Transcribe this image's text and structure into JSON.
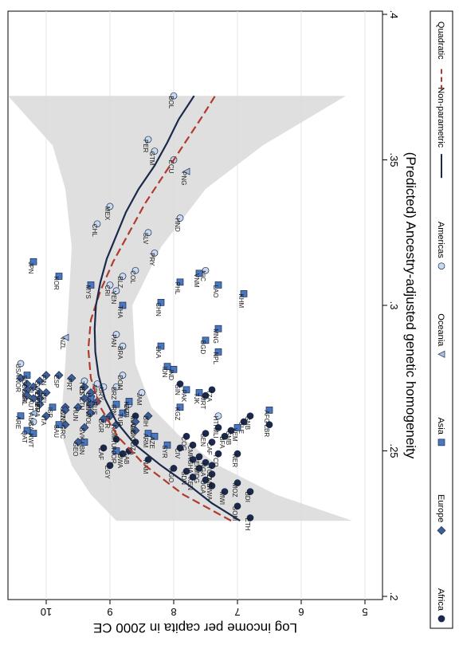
{
  "chart_data": {
    "type": "scatter",
    "rotated": "90-degrees-clockwise",
    "xlabel": "(Predicted) Ancestry-adjusted genetic homogeneity",
    "ylabel": "Log income per capita in 2000 CE",
    "xlim": [
      0.2,
      0.4
    ],
    "ylim": [
      5,
      11
    ],
    "x_ticks": [
      0.2,
      0.25,
      0.3,
      0.35,
      0.4
    ],
    "x_tick_labels": [
      ".2",
      ".25",
      ".3",
      ".35",
      ".4"
    ],
    "y_ticks": [
      5,
      6,
      7,
      8,
      9,
      10
    ],
    "y_tick_labels": [
      "5",
      "6",
      "7",
      "8",
      "9",
      "10"
    ],
    "grid": true,
    "legend_position": "right",
    "legend": [
      {
        "key": "Africa",
        "label": "Africa",
        "marker": "circle",
        "color": "#1b2a4a"
      },
      {
        "key": "Europe",
        "label": "Europe",
        "marker": "diamond",
        "color": "#3f5f98"
      },
      {
        "key": "Asia",
        "label": "Asia",
        "marker": "square",
        "color": "#4a78c0"
      },
      {
        "key": "Oceania",
        "label": "Oceania",
        "marker": "triangle",
        "color": "#a9c2e6"
      },
      {
        "key": "Americas",
        "label": "Americas",
        "marker": "circle",
        "color": "#c9daf0"
      },
      {
        "key": "Nonparametric",
        "label": "Non-parametric",
        "marker": "line",
        "color": "#1b2a4a"
      },
      {
        "key": "Quadratic",
        "label": "Quadratic",
        "marker": "dash",
        "color": "#b03a2e"
      }
    ],
    "labeled_points": [
      {
        "code": "BOL",
        "x": 0.372,
        "y": 8.0,
        "group": "Americas"
      },
      {
        "code": "PER",
        "x": 0.357,
        "y": 8.4,
        "group": "Americas"
      },
      {
        "code": "GTM",
        "x": 0.353,
        "y": 8.3,
        "group": "Americas"
      },
      {
        "code": "ECU",
        "x": 0.35,
        "y": 8.0,
        "group": "Americas"
      },
      {
        "code": "PNG",
        "x": 0.346,
        "y": 7.8,
        "group": "Oceania"
      },
      {
        "code": "MEX",
        "x": 0.334,
        "y": 9.0,
        "group": "Americas"
      },
      {
        "code": "CHL",
        "x": 0.328,
        "y": 9.2,
        "group": "Americas"
      },
      {
        "code": "SLV",
        "x": 0.325,
        "y": 8.4,
        "group": "Americas"
      },
      {
        "code": "HND",
        "x": 0.33,
        "y": 7.9,
        "group": "Americas"
      },
      {
        "code": "JPN",
        "x": 0.315,
        "y": 10.2,
        "group": "Asia"
      },
      {
        "code": "KOR",
        "x": 0.31,
        "y": 9.8,
        "group": "Asia"
      },
      {
        "code": "COL",
        "x": 0.312,
        "y": 8.6,
        "group": "Americas"
      },
      {
        "code": "BLZ",
        "x": 0.31,
        "y": 8.8,
        "group": "Americas"
      },
      {
        "code": "NIC",
        "x": 0.312,
        "y": 7.5,
        "group": "Americas"
      },
      {
        "code": "MYS",
        "x": 0.307,
        "y": 9.3,
        "group": "Asia"
      },
      {
        "code": "VEN",
        "x": 0.305,
        "y": 8.9,
        "group": "Americas"
      },
      {
        "code": "THA",
        "x": 0.3,
        "y": 8.8,
        "group": "Asia"
      },
      {
        "code": "CHN",
        "x": 0.301,
        "y": 8.2,
        "group": "Asia"
      },
      {
        "code": "VNM",
        "x": 0.311,
        "y": 7.6,
        "group": "Asia"
      },
      {
        "code": "PHL",
        "x": 0.308,
        "y": 7.9,
        "group": "Asia"
      },
      {
        "code": "LAO",
        "x": 0.307,
        "y": 7.3,
        "group": "Asia"
      },
      {
        "code": "KHM",
        "x": 0.304,
        "y": 6.9,
        "group": "Asia"
      },
      {
        "code": "NZL",
        "x": 0.289,
        "y": 9.7,
        "group": "Oceania"
      },
      {
        "code": "BRA",
        "x": 0.286,
        "y": 8.8,
        "group": "Americas"
      },
      {
        "code": "LKA",
        "x": 0.286,
        "y": 8.2,
        "group": "Asia"
      },
      {
        "code": "BGD",
        "x": 0.288,
        "y": 7.5,
        "group": "Asia"
      },
      {
        "code": "MNG",
        "x": 0.292,
        "y": 7.3,
        "group": "Asia"
      },
      {
        "code": "NPL",
        "x": 0.284,
        "y": 7.3,
        "group": "Asia"
      },
      {
        "code": "USA",
        "x": 0.28,
        "y": 10.4,
        "group": "Americas"
      },
      {
        "code": "ESP",
        "x": 0.276,
        "y": 9.8,
        "group": "Europe"
      },
      {
        "code": "PRT",
        "x": 0.275,
        "y": 9.6,
        "group": "Europe"
      },
      {
        "code": "ARG",
        "x": 0.273,
        "y": 9.2,
        "group": "Americas"
      },
      {
        "code": "URY",
        "x": 0.272,
        "y": 9.1,
        "group": "Americas"
      },
      {
        "code": "OMN",
        "x": 0.268,
        "y": 9.3,
        "group": "Asia"
      },
      {
        "code": "SVN",
        "x": 0.265,
        "y": 9.7,
        "group": "Europe"
      },
      {
        "code": "ISR",
        "x": 0.265,
        "y": 9.9,
        "group": "Asia"
      },
      {
        "code": "HRV",
        "x": 0.266,
        "y": 9.3,
        "group": "Europe"
      },
      {
        "code": "BRZ",
        "x": 0.272,
        "y": 8.9,
        "group": "Americas"
      },
      {
        "code": "CUB",
        "x": 0.266,
        "y": 8.7,
        "group": "Americas"
      },
      {
        "code": "IND",
        "x": 0.278,
        "y": 8.0,
        "group": "Asia"
      },
      {
        "code": "GIN",
        "x": 0.273,
        "y": 7.9,
        "group": "Africa"
      },
      {
        "code": "PAK",
        "x": 0.271,
        "y": 7.8,
        "group": "Asia"
      },
      {
        "code": "MRT",
        "x": 0.269,
        "y": 7.5,
        "group": "Africa"
      },
      {
        "code": "TZA",
        "x": 0.271,
        "y": 7.4,
        "group": "Africa"
      },
      {
        "code": "MLI",
        "x": 0.258,
        "y": 7.3,
        "group": "Africa"
      },
      {
        "code": "GNB",
        "x": 0.262,
        "y": 6.8,
        "group": "Africa"
      },
      {
        "code": "SLE",
        "x": 0.26,
        "y": 6.9,
        "group": "Africa"
      },
      {
        "code": "LBR",
        "x": 0.259,
        "y": 6.5,
        "group": "Africa"
      },
      {
        "code": "AFG",
        "x": 0.264,
        "y": 6.5,
        "group": "Asia"
      },
      {
        "code": "CAF",
        "x": 0.253,
        "y": 7.4,
        "group": "Africa"
      },
      {
        "code": "NER",
        "x": 0.249,
        "y": 7.0,
        "group": "Africa"
      },
      {
        "code": "TGO",
        "x": 0.245,
        "y": 7.4,
        "group": "Africa"
      },
      {
        "code": "MDG",
        "x": 0.244,
        "y": 7.6,
        "group": "Africa"
      },
      {
        "code": "COG",
        "x": 0.255,
        "y": 7.8,
        "group": "Africa"
      },
      {
        "code": "BIH",
        "x": 0.262,
        "y": 8.4,
        "group": "Europe"
      },
      {
        "code": "MAR",
        "x": 0.262,
        "y": 8.6,
        "group": "Africa"
      },
      {
        "code": "SYR",
        "x": 0.252,
        "y": 8.1,
        "group": "Asia"
      },
      {
        "code": "EGY",
        "x": 0.245,
        "y": 9.0,
        "group": "Africa"
      },
      {
        "code": "JOR",
        "x": 0.25,
        "y": 8.9,
        "group": "Asia"
      },
      {
        "code": "LBN",
        "x": 0.253,
        "y": 9.4,
        "group": "Asia"
      },
      {
        "code": "GEO",
        "x": 0.253,
        "y": 9.5,
        "group": "Europe"
      },
      {
        "code": "SVK",
        "x": 0.258,
        "y": 9.4,
        "group": "Europe"
      },
      {
        "code": "GRC",
        "x": 0.259,
        "y": 9.7,
        "group": "Europe"
      },
      {
        "code": "CAN",
        "x": 0.26,
        "y": 10.2,
        "group": "Americas"
      },
      {
        "code": "QAT",
        "x": 0.257,
        "y": 10.3,
        "group": "Asia"
      },
      {
        "code": "KWT",
        "x": 0.256,
        "y": 10.2,
        "group": "Asia"
      },
      {
        "code": "ETH",
        "x": 0.227,
        "y": 6.8,
        "group": "Africa"
      },
      {
        "code": "SOM",
        "x": 0.231,
        "y": 7.0,
        "group": "Africa"
      },
      {
        "code": "BDI",
        "x": 0.236,
        "y": 6.8,
        "group": "Africa"
      },
      {
        "code": "RWA",
        "x": 0.238,
        "y": 7.4,
        "group": "Africa"
      },
      {
        "code": "UGA",
        "x": 0.24,
        "y": 7.5,
        "group": "Africa"
      },
      {
        "code": "KEN",
        "x": 0.241,
        "y": 7.7,
        "group": "Africa"
      },
      {
        "code": "MWI",
        "x": 0.236,
        "y": 7.2,
        "group": "Africa"
      },
      {
        "code": "ZMB",
        "x": 0.242,
        "y": 7.4,
        "group": "Africa"
      },
      {
        "code": "GAB",
        "x": 0.25,
        "y": 8.7,
        "group": "Africa"
      },
      {
        "code": "CMR",
        "x": 0.252,
        "y": 7.7,
        "group": "Africa"
      },
      {
        "code": "BEN",
        "x": 0.248,
        "y": 7.6,
        "group": "Africa"
      },
      {
        "code": "CIV",
        "x": 0.251,
        "y": 7.9,
        "group": "Africa"
      },
      {
        "code": "GHA",
        "x": 0.247,
        "y": 7.7,
        "group": "Africa"
      },
      {
        "code": "TCD",
        "x": 0.249,
        "y": 7.3,
        "group": "Africa"
      },
      {
        "code": "SDN",
        "x": 0.243,
        "y": 7.8,
        "group": "Africa"
      },
      {
        "code": "NGA",
        "x": 0.246,
        "y": 7.5,
        "group": "Africa"
      },
      {
        "code": "BFA",
        "x": 0.255,
        "y": 7.2,
        "group": "Africa"
      },
      {
        "code": "SEN",
        "x": 0.256,
        "y": 7.5,
        "group": "Africa"
      },
      {
        "code": "GMB",
        "x": 0.257,
        "y": 7.1,
        "group": "Africa"
      },
      {
        "code": "MOZ",
        "x": 0.239,
        "y": 7.0,
        "group": "Africa"
      },
      {
        "code": "AGO",
        "x": 0.244,
        "y": 8.0,
        "group": "Africa"
      },
      {
        "code": "NAM",
        "x": 0.247,
        "y": 8.4,
        "group": "Africa"
      },
      {
        "code": "BWA",
        "x": 0.249,
        "y": 8.8,
        "group": "Africa"
      },
      {
        "code": "ZAF",
        "x": 0.251,
        "y": 9.1,
        "group": "Africa"
      },
      {
        "code": "TUN",
        "x": 0.254,
        "y": 8.9,
        "group": "Africa"
      },
      {
        "code": "DZA",
        "x": 0.253,
        "y": 8.6,
        "group": "Africa"
      },
      {
        "code": "UKR",
        "x": 0.257,
        "y": 8.6,
        "group": "Europe"
      },
      {
        "code": "ROM",
        "x": 0.259,
        "y": 8.9,
        "group": "Europe"
      },
      {
        "code": "BLR",
        "x": 0.262,
        "y": 9.0,
        "group": "Europe"
      },
      {
        "code": "TUR",
        "x": 0.263,
        "y": 8.8,
        "group": "Asia"
      },
      {
        "code": "IRN",
        "x": 0.266,
        "y": 8.9,
        "group": "Asia"
      },
      {
        "code": "KAZ",
        "x": 0.267,
        "y": 8.7,
        "group": "Asia"
      },
      {
        "code": "KGZ",
        "x": 0.265,
        "y": 7.9,
        "group": "Asia"
      },
      {
        "code": "TJK",
        "x": 0.27,
        "y": 7.6,
        "group": "Asia"
      },
      {
        "code": "ITA",
        "x": 0.262,
        "y": 10.0,
        "group": "Europe"
      },
      {
        "code": "FRA",
        "x": 0.266,
        "y": 10.1,
        "group": "Europe"
      },
      {
        "code": "GBR",
        "x": 0.268,
        "y": 10.1,
        "group": "Europe"
      },
      {
        "code": "DEU",
        "x": 0.27,
        "y": 10.1,
        "group": "Europe"
      },
      {
        "code": "NLD",
        "x": 0.272,
        "y": 10.2,
        "group": "Europe"
      },
      {
        "code": "BEL",
        "x": 0.27,
        "y": 10.0,
        "group": "Europe"
      },
      {
        "code": "AUT",
        "x": 0.268,
        "y": 10.2,
        "group": "Europe"
      },
      {
        "code": "CHE",
        "x": 0.273,
        "y": 10.3,
        "group": "Europe"
      },
      {
        "code": "DNK",
        "x": 0.271,
        "y": 10.3,
        "group": "Europe"
      },
      {
        "code": "SWE",
        "x": 0.274,
        "y": 10.1,
        "group": "Europe"
      },
      {
        "code": "NOR",
        "x": 0.275,
        "y": 10.4,
        "group": "Europe"
      },
      {
        "code": "FIN",
        "x": 0.276,
        "y": 10.0,
        "group": "Europe"
      },
      {
        "code": "IRL",
        "x": 0.269,
        "y": 10.3,
        "group": "Europe"
      },
      {
        "code": "AUS",
        "x": 0.263,
        "y": 10.2,
        "group": "Oceania"
      },
      {
        "code": "POL",
        "x": 0.263,
        "y": 9.3,
        "group": "Europe"
      },
      {
        "code": "HUN",
        "x": 0.265,
        "y": 9.5,
        "group": "Europe"
      },
      {
        "code": "CZE",
        "x": 0.264,
        "y": 9.7,
        "group": "Europe"
      },
      {
        "code": "EST",
        "x": 0.272,
        "y": 9.4,
        "group": "Europe"
      },
      {
        "code": "LVA",
        "x": 0.27,
        "y": 9.3,
        "group": "Europe"
      },
      {
        "code": "LTU",
        "x": 0.268,
        "y": 9.4,
        "group": "Europe"
      },
      {
        "code": "RUS",
        "x": 0.267,
        "y": 9.2,
        "group": "Europe"
      },
      {
        "code": "BGR",
        "x": 0.261,
        "y": 9.1,
        "group": "Europe"
      },
      {
        "code": "ALB",
        "x": 0.26,
        "y": 8.6,
        "group": "Europe"
      },
      {
        "code": "ARM",
        "x": 0.256,
        "y": 8.4,
        "group": "Asia"
      },
      {
        "code": "AZE",
        "x": 0.255,
        "y": 8.3,
        "group": "Asia"
      },
      {
        "code": "SAU",
        "x": 0.259,
        "y": 9.8,
        "group": "Asia"
      },
      {
        "code": "ARE",
        "x": 0.262,
        "y": 10.4,
        "group": "Asia"
      },
      {
        "code": "YEM",
        "x": 0.258,
        "y": 7.0,
        "group": "Asia"
      },
      {
        "code": "SGP",
        "x": 0.276,
        "y": 10.3,
        "group": "Asia"
      },
      {
        "code": "IDN",
        "x": 0.279,
        "y": 8.1,
        "group": "Asia"
      },
      {
        "code": "TTO",
        "x": 0.274,
        "y": 9.4,
        "group": "Americas"
      },
      {
        "code": "JAM",
        "x": 0.27,
        "y": 8.5,
        "group": "Americas"
      },
      {
        "code": "DOM",
        "x": 0.276,
        "y": 8.8,
        "group": "Americas"
      },
      {
        "code": "PAN",
        "x": 0.29,
        "y": 8.9,
        "group": "Americas"
      },
      {
        "code": "CRI",
        "x": 0.307,
        "y": 9.0,
        "group": "Americas"
      },
      {
        "code": "PRY",
        "x": 0.318,
        "y": 8.3,
        "group": "Americas"
      },
      {
        "code": "HTI",
        "x": 0.262,
        "y": 7.3,
        "group": "Americas"
      }
    ],
    "nonparametric_curve": {
      "x": [
        0.226,
        0.232,
        0.238,
        0.245,
        0.252,
        0.26,
        0.268,
        0.276,
        0.284,
        0.292,
        0.3,
        0.308,
        0.316,
        0.324,
        0.332,
        0.34,
        0.348,
        0.356,
        0.364,
        0.372
      ],
      "y": [
        6.96,
        7.4,
        7.75,
        8.2,
        8.6,
        8.9,
        9.08,
        9.18,
        9.23,
        9.24,
        9.22,
        9.15,
        9.05,
        8.9,
        8.75,
        8.55,
        8.3,
        8.1,
        7.92,
        7.68
      ]
    },
    "quadratic_curve": {
      "x": [
        0.226,
        0.235,
        0.245,
        0.255,
        0.265,
        0.275,
        0.285,
        0.295,
        0.305,
        0.315,
        0.325,
        0.335,
        0.345,
        0.355,
        0.365,
        0.372
      ],
      "y": [
        7.1,
        7.85,
        8.45,
        8.88,
        9.15,
        9.3,
        9.34,
        9.3,
        9.15,
        8.95,
        8.7,
        8.45,
        8.15,
        7.85,
        7.55,
        7.35
      ]
    },
    "ci_band": {
      "x": [
        0.226,
        0.235,
        0.245,
        0.255,
        0.265,
        0.28,
        0.3,
        0.32,
        0.34,
        0.355,
        0.372
      ],
      "upper": [
        8.9,
        9.3,
        9.6,
        9.75,
        9.75,
        9.7,
        9.65,
        9.6,
        9.7,
        9.9,
        10.6
      ],
      "lower": [
        5.2,
        6.4,
        7.3,
        7.9,
        8.35,
        8.6,
        8.65,
        8.2,
        7.5,
        6.6,
        5.3
      ]
    }
  }
}
